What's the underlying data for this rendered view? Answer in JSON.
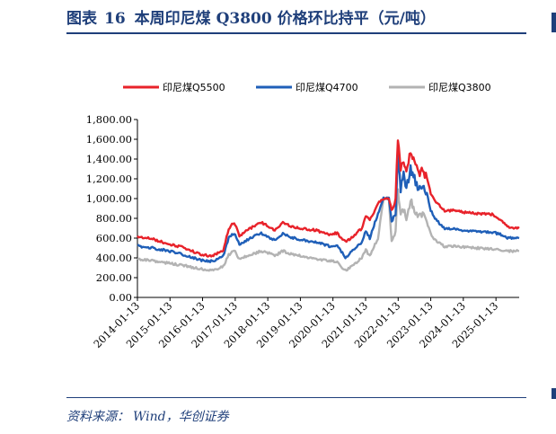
{
  "header": {
    "label": "图表",
    "number": "16",
    "title": "本周印尼煤 Q3800 价格环比持平（元/吨）"
  },
  "source": {
    "label": "资料来源：",
    "text": "Wind，华创证券"
  },
  "chart_data": {
    "type": "line",
    "title": "",
    "xlabel": "",
    "ylabel": "",
    "ylim": [
      0,
      1800
    ],
    "x_range": [
      "2014-01-13",
      "2025-09-30"
    ],
    "grid": false,
    "legend_position": "top",
    "y_ticks": [
      "0.00",
      "200.00",
      "400.00",
      "600.00",
      "800.00",
      "1,000.00",
      "1,200.00",
      "1,400.00",
      "1,600.00",
      "1,800.00"
    ],
    "x_ticks": [
      "2014-01-13",
      "2015-01-13",
      "2016-01-13",
      "2017-01-13",
      "2018-01-13",
      "2019-01-13",
      "2020-01-13",
      "2021-01-13",
      "2022-01-13",
      "2023-01-13",
      "2024-01-13",
      "2025-01-13"
    ],
    "series": [
      {
        "name": "印尼煤Q5500",
        "color": "#e8222a",
        "points": [
          [
            "2014-01-13",
            615
          ],
          [
            "2014-07-01",
            590
          ],
          [
            "2015-01-01",
            540
          ],
          [
            "2015-07-01",
            500
          ],
          [
            "2016-01-01",
            430
          ],
          [
            "2016-05-01",
            420
          ],
          [
            "2016-09-01",
            480
          ],
          [
            "2016-11-01",
            700
          ],
          [
            "2017-01-01",
            760
          ],
          [
            "2017-03-01",
            620
          ],
          [
            "2017-07-01",
            700
          ],
          [
            "2017-11-01",
            760
          ],
          [
            "2018-01-15",
            720
          ],
          [
            "2018-04-01",
            680
          ],
          [
            "2018-07-01",
            760
          ],
          [
            "2018-10-01",
            720
          ],
          [
            "2019-01-13",
            700
          ],
          [
            "2019-07-01",
            680
          ],
          [
            "2019-12-01",
            640
          ],
          [
            "2020-03-01",
            650
          ],
          [
            "2020-06-01",
            560
          ],
          [
            "2020-09-01",
            620
          ],
          [
            "2020-12-01",
            700
          ],
          [
            "2021-01-15",
            830
          ],
          [
            "2021-03-01",
            780
          ],
          [
            "2021-06-01",
            950
          ],
          [
            "2021-08-01",
            1000
          ],
          [
            "2021-10-01",
            1000
          ],
          [
            "2021-11-01",
            880
          ],
          [
            "2021-12-15",
            980
          ],
          [
            "2022-01-10",
            1600
          ],
          [
            "2022-02-10",
            1280
          ],
          [
            "2022-03-15",
            1400
          ],
          [
            "2022-04-15",
            1250
          ],
          [
            "2022-06-01",
            1470
          ],
          [
            "2022-07-15",
            1380
          ],
          [
            "2022-09-01",
            1250
          ],
          [
            "2022-10-15",
            1300
          ],
          [
            "2022-12-01",
            1200
          ],
          [
            "2023-01-13",
            1050
          ],
          [
            "2023-03-01",
            980
          ],
          [
            "2023-05-01",
            920
          ],
          [
            "2023-07-01",
            870
          ],
          [
            "2023-10-01",
            880
          ],
          [
            "2024-01-13",
            860
          ],
          [
            "2024-06-01",
            850
          ],
          [
            "2024-12-01",
            840
          ],
          [
            "2025-03-01",
            790
          ],
          [
            "2025-06-01",
            710
          ],
          [
            "2025-09-30",
            700
          ]
        ]
      },
      {
        "name": "印尼煤Q4700",
        "color": "#1f5fb8",
        "points": [
          [
            "2014-01-13",
            520
          ],
          [
            "2014-07-01",
            500
          ],
          [
            "2015-01-01",
            470
          ],
          [
            "2015-07-01",
            430
          ],
          [
            "2016-01-01",
            375
          ],
          [
            "2016-05-01",
            365
          ],
          [
            "2016-09-01",
            420
          ],
          [
            "2016-11-01",
            600
          ],
          [
            "2017-01-01",
            650
          ],
          [
            "2017-03-01",
            540
          ],
          [
            "2017-07-01",
            600
          ],
          [
            "2017-11-01",
            650
          ],
          [
            "2018-01-15",
            610
          ],
          [
            "2018-04-01",
            580
          ],
          [
            "2018-07-01",
            650
          ],
          [
            "2018-10-01",
            610
          ],
          [
            "2019-01-13",
            580
          ],
          [
            "2019-07-01",
            560
          ],
          [
            "2019-12-01",
            520
          ],
          [
            "2020-03-01",
            530
          ],
          [
            "2020-06-01",
            400
          ],
          [
            "2020-09-01",
            480
          ],
          [
            "2020-12-01",
            560
          ],
          [
            "2021-01-15",
            680
          ],
          [
            "2021-03-01",
            600
          ],
          [
            "2021-06-01",
            850
          ],
          [
            "2021-08-01",
            1000
          ],
          [
            "2021-10-01",
            1000
          ],
          [
            "2021-11-01",
            760
          ],
          [
            "2021-12-15",
            860
          ],
          [
            "2022-01-10",
            1450
          ],
          [
            "2022-02-10",
            1100
          ],
          [
            "2022-03-15",
            1250
          ],
          [
            "2022-04-15",
            1100
          ],
          [
            "2022-06-01",
            1300
          ],
          [
            "2022-07-15",
            1200
          ],
          [
            "2022-09-01",
            1080
          ],
          [
            "2022-10-15",
            1150
          ],
          [
            "2022-12-01",
            1050
          ],
          [
            "2023-01-13",
            880
          ],
          [
            "2023-03-01",
            800
          ],
          [
            "2023-05-01",
            740
          ],
          [
            "2023-07-01",
            690
          ],
          [
            "2023-10-01",
            700
          ],
          [
            "2024-01-13",
            680
          ],
          [
            "2024-06-01",
            670
          ],
          [
            "2024-12-01",
            660
          ],
          [
            "2025-03-01",
            640
          ],
          [
            "2025-06-01",
            600
          ],
          [
            "2025-09-30",
            600
          ]
        ]
      },
      {
        "name": "印尼煤Q3800",
        "color": "#b3b3b3",
        "points": [
          [
            "2014-01-13",
            390
          ],
          [
            "2014-07-01",
            370
          ],
          [
            "2015-01-01",
            345
          ],
          [
            "2015-07-01",
            320
          ],
          [
            "2016-01-01",
            285
          ],
          [
            "2016-05-01",
            275
          ],
          [
            "2016-09-01",
            310
          ],
          [
            "2016-11-01",
            430
          ],
          [
            "2017-01-01",
            480
          ],
          [
            "2017-03-01",
            390
          ],
          [
            "2017-07-01",
            430
          ],
          [
            "2017-11-01",
            470
          ],
          [
            "2018-01-15",
            450
          ],
          [
            "2018-04-01",
            420
          ],
          [
            "2018-07-01",
            470
          ],
          [
            "2018-10-01",
            440
          ],
          [
            "2019-01-13",
            420
          ],
          [
            "2019-07-01",
            390
          ],
          [
            "2019-12-01",
            370
          ],
          [
            "2020-03-01",
            360
          ],
          [
            "2020-06-01",
            270
          ],
          [
            "2020-09-01",
            330
          ],
          [
            "2020-12-01",
            400
          ],
          [
            "2021-01-15",
            480
          ],
          [
            "2021-03-01",
            420
          ],
          [
            "2021-06-01",
            600
          ],
          [
            "2021-08-01",
            1000
          ],
          [
            "2021-10-01",
            1000
          ],
          [
            "2021-11-01",
            560
          ],
          [
            "2021-12-15",
            650
          ],
          [
            "2022-01-10",
            1120
          ],
          [
            "2022-02-10",
            820
          ],
          [
            "2022-03-15",
            900
          ],
          [
            "2022-04-15",
            820
          ],
          [
            "2022-06-01",
            980
          ],
          [
            "2022-07-15",
            900
          ],
          [
            "2022-09-01",
            800
          ],
          [
            "2022-10-15",
            860
          ],
          [
            "2022-12-01",
            760
          ],
          [
            "2023-01-13",
            640
          ],
          [
            "2023-03-01",
            580
          ],
          [
            "2023-05-01",
            540
          ],
          [
            "2023-07-01",
            510
          ],
          [
            "2023-10-01",
            520
          ],
          [
            "2024-01-13",
            510
          ],
          [
            "2024-06-01",
            500
          ],
          [
            "2024-12-01",
            490
          ],
          [
            "2025-03-01",
            480
          ],
          [
            "2025-06-01",
            470
          ],
          [
            "2025-09-30",
            470
          ]
        ]
      }
    ]
  }
}
